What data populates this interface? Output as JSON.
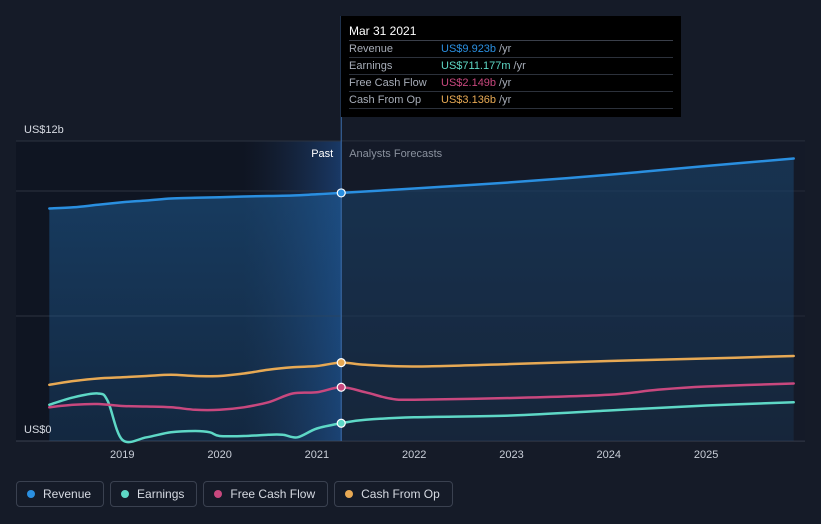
{
  "chart_data": {
    "type": "line",
    "ylabel_top": "US$12b",
    "ylabel_bottom": "US$0",
    "ylim": [
      0,
      12
    ],
    "past_label": "Past",
    "forecast_label": "Analysts Forecasts",
    "x_ticks": [
      "2019",
      "2020",
      "2021",
      "2022",
      "2023",
      "2024",
      "2025"
    ],
    "series": [
      {
        "name": "Revenue",
        "color": "#2a8fe0",
        "points": [
          [
            2018.25,
            9.3
          ],
          [
            2018.5,
            9.35
          ],
          [
            2018.75,
            9.45
          ],
          [
            2019.0,
            9.55
          ],
          [
            2019.25,
            9.62
          ],
          [
            2019.5,
            9.7
          ],
          [
            2019.75,
            9.73
          ],
          [
            2020.0,
            9.75
          ],
          [
            2020.25,
            9.78
          ],
          [
            2020.5,
            9.8
          ],
          [
            2020.75,
            9.82
          ],
          [
            2021.0,
            9.87
          ],
          [
            2021.25,
            9.923
          ],
          [
            2022.0,
            10.1
          ],
          [
            2023.0,
            10.35
          ],
          [
            2024.0,
            10.65
          ],
          [
            2025.0,
            11.0
          ],
          [
            2025.9,
            11.3
          ]
        ]
      },
      {
        "name": "Earnings",
        "color": "#5ed8c6",
        "points": [
          [
            2018.25,
            1.45
          ],
          [
            2018.5,
            1.75
          ],
          [
            2018.75,
            1.9
          ],
          [
            2018.85,
            1.6
          ],
          [
            2019.0,
            0.05
          ],
          [
            2019.25,
            0.15
          ],
          [
            2019.5,
            0.35
          ],
          [
            2019.75,
            0.4
          ],
          [
            2019.9,
            0.35
          ],
          [
            2020.0,
            0.2
          ],
          [
            2020.25,
            0.2
          ],
          [
            2020.5,
            0.25
          ],
          [
            2020.65,
            0.25
          ],
          [
            2020.8,
            0.15
          ],
          [
            2021.0,
            0.5
          ],
          [
            2021.25,
            0.711
          ],
          [
            2021.5,
            0.85
          ],
          [
            2022.0,
            0.95
          ],
          [
            2023.0,
            1.02
          ],
          [
            2024.0,
            1.22
          ],
          [
            2025.0,
            1.42
          ],
          [
            2025.9,
            1.55
          ]
        ]
      },
      {
        "name": "Free Cash Flow",
        "color": "#c8487e",
        "points": [
          [
            2018.25,
            1.35
          ],
          [
            2018.5,
            1.45
          ],
          [
            2018.75,
            1.48
          ],
          [
            2019.0,
            1.4
          ],
          [
            2019.25,
            1.38
          ],
          [
            2019.5,
            1.35
          ],
          [
            2019.75,
            1.25
          ],
          [
            2020.0,
            1.25
          ],
          [
            2020.25,
            1.35
          ],
          [
            2020.5,
            1.55
          ],
          [
            2020.75,
            1.9
          ],
          [
            2021.0,
            1.95
          ],
          [
            2021.25,
            2.149
          ],
          [
            2021.5,
            1.95
          ],
          [
            2021.75,
            1.7
          ],
          [
            2022.0,
            1.65
          ],
          [
            2023.0,
            1.72
          ],
          [
            2024.0,
            1.85
          ],
          [
            2024.5,
            2.05
          ],
          [
            2025.0,
            2.18
          ],
          [
            2025.9,
            2.3
          ]
        ]
      },
      {
        "name": "Cash From Op",
        "color": "#e7a954",
        "points": [
          [
            2018.25,
            2.25
          ],
          [
            2018.5,
            2.4
          ],
          [
            2018.75,
            2.5
          ],
          [
            2019.0,
            2.55
          ],
          [
            2019.25,
            2.6
          ],
          [
            2019.5,
            2.65
          ],
          [
            2019.75,
            2.6
          ],
          [
            2020.0,
            2.6
          ],
          [
            2020.25,
            2.7
          ],
          [
            2020.5,
            2.85
          ],
          [
            2020.75,
            2.95
          ],
          [
            2021.0,
            3.0
          ],
          [
            2021.25,
            3.136
          ],
          [
            2021.5,
            3.05
          ],
          [
            2022.0,
            2.98
          ],
          [
            2023.0,
            3.08
          ],
          [
            2024.0,
            3.2
          ],
          [
            2025.0,
            3.3
          ],
          [
            2025.9,
            3.4
          ]
        ]
      }
    ],
    "highlight_x": 2021.25
  },
  "tooltip": {
    "date": "Mar 31 2021",
    "rows": [
      {
        "label": "Revenue",
        "value": "US$9.923b",
        "unit": "/yr",
        "color": "#2a8fe0"
      },
      {
        "label": "Earnings",
        "value": "US$711.177m",
        "unit": "/yr",
        "color": "#5ed8c6"
      },
      {
        "label": "Free Cash Flow",
        "value": "US$2.149b",
        "unit": "/yr",
        "color": "#c8487e"
      },
      {
        "label": "Cash From Op",
        "value": "US$3.136b",
        "unit": "/yr",
        "color": "#e7a954"
      }
    ]
  },
  "legend": [
    {
      "label": "Revenue",
      "color": "#2a8fe0"
    },
    {
      "label": "Earnings",
      "color": "#5ed8c6"
    },
    {
      "label": "Free Cash Flow",
      "color": "#c8487e"
    },
    {
      "label": "Cash From Op",
      "color": "#e7a954"
    }
  ]
}
